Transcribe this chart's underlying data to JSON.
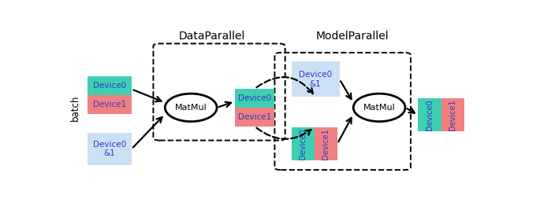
{
  "fig_width": 6.85,
  "fig_height": 2.71,
  "dpi": 100,
  "bg_color": "#ffffff",
  "teal_color": "#3ecfb2",
  "pink_color": "#f08080",
  "blue_light_color": "#cce0f5",
  "text_color": "#3535cc",
  "label_color": "#000000",
  "title1": "DataParallel",
  "title2": "ModelParallel",
  "batch_label": "batch",
  "matmul_label": "MatMul",
  "device0_label": "Device0",
  "device1_label": "Device1",
  "device01_label": "Device0\n&1"
}
